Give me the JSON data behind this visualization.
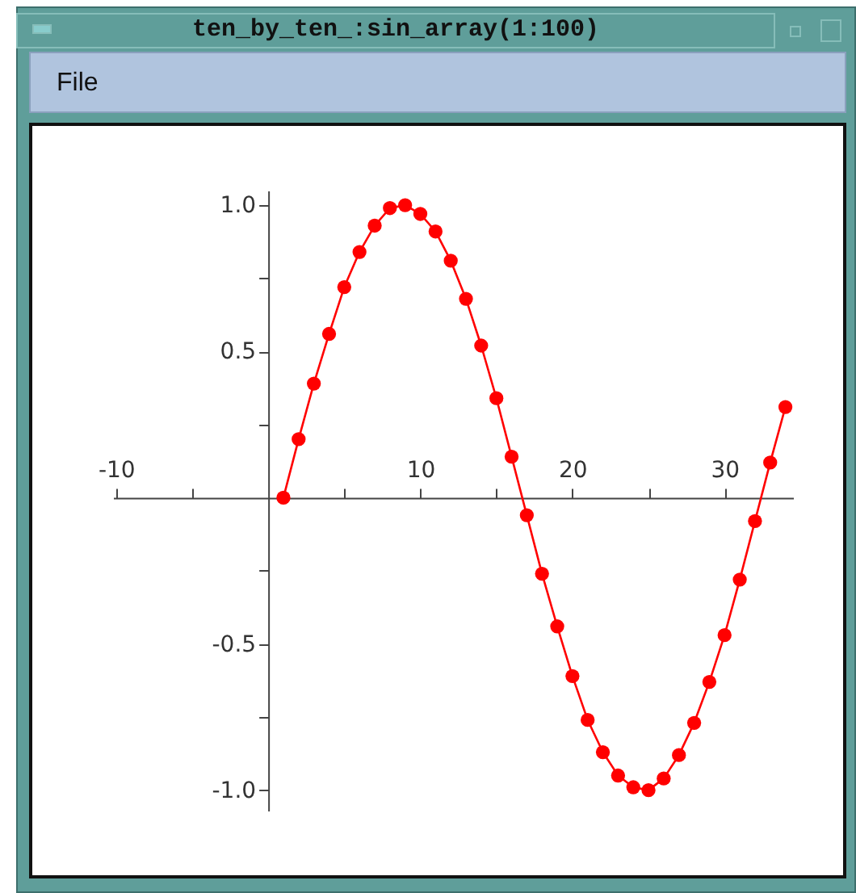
{
  "chart_data": {
    "type": "line",
    "title": "ten_by_ten_:sin_array(1:100)",
    "annotations": [
      "File"
    ],
    "x": [
      1,
      2,
      3,
      4,
      5,
      6,
      7,
      8,
      9,
      10,
      11,
      12,
      13,
      14,
      15,
      16,
      17,
      18,
      19,
      20,
      21,
      22,
      23,
      24,
      25,
      26,
      27,
      28,
      29,
      30,
      31,
      32,
      33,
      34
    ],
    "series": [
      {
        "color": "#ff0000",
        "values": [
          0,
          0.2,
          0.39,
          0.56,
          0.72,
          0.84,
          0.93,
          0.99,
          1.0,
          0.97,
          0.91,
          0.81,
          0.68,
          0.52,
          0.34,
          0.14,
          -0.06,
          -0.26,
          -0.44,
          -0.61,
          -0.76,
          -0.87,
          -0.95,
          -0.99,
          -1.0,
          -0.96,
          -0.88,
          -0.77,
          -0.63,
          -0.47,
          -0.28,
          -0.08,
          0.12,
          0.31
        ]
      }
    ],
    "xlim": [
      -10.2,
      34.5
    ],
    "ylim": [
      -1.07,
      1.05
    ],
    "xticks": [
      -10,
      {
        "value": -5,
        "label": null
      },
      {
        "value": 5,
        "label": null
      },
      10,
      {
        "value": 15,
        "label": null
      },
      20,
      {
        "value": 25,
        "label": null
      },
      30
    ],
    "yticks": [
      {
        "value": 1,
        "label": "1.0"
      },
      {
        "value": 0.75,
        "label": null
      },
      0.5,
      {
        "value": 0.25,
        "label": null
      },
      {
        "value": -0.25,
        "label": null
      },
      -0.5,
      {
        "value": -0.75,
        "label": null
      },
      {
        "value": -1,
        "label": "-1.0"
      }
    ],
    "marker": "circle",
    "line_style": "solid",
    "grid": false
  }
}
